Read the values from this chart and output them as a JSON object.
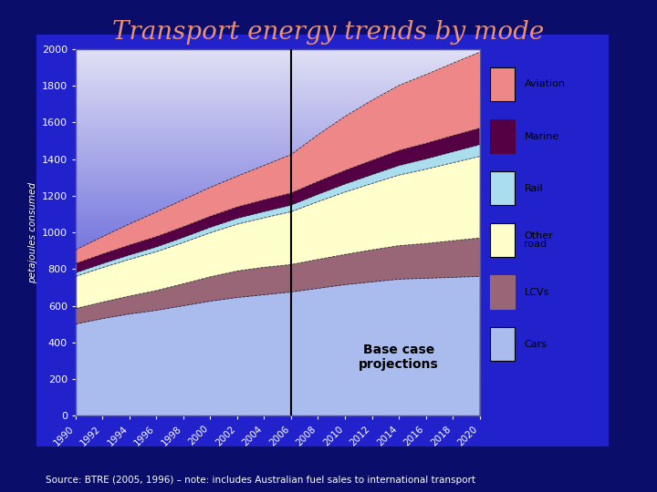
{
  "title": "Transport energy trends by mode",
  "title_color": "#E8907A",
  "bg_outer": "#0A0E6A",
  "bg_plot": "#2222CC",
  "source_text": "Source: BTRE (2005, 1996) – note: includes Australian fuel sales to international transport",
  "ylabel": "petajoules consumed",
  "years": [
    1990,
    1992,
    1994,
    1996,
    1998,
    2000,
    2002,
    2004,
    2006,
    2008,
    2010,
    2012,
    2014,
    2016,
    2018,
    2020
  ],
  "annotation": "Base case\nprojections",
  "vline_year": 2006,
  "series": {
    "Cars": [
      500,
      530,
      555,
      575,
      600,
      625,
      645,
      660,
      675,
      695,
      715,
      730,
      745,
      750,
      755,
      760
    ],
    "LCVs": [
      85,
      90,
      98,
      108,
      120,
      133,
      145,
      150,
      150,
      158,
      165,
      175,
      183,
      190,
      200,
      210
    ],
    "Other road": [
      175,
      188,
      200,
      212,
      225,
      240,
      255,
      270,
      288,
      315,
      340,
      362,
      385,
      405,
      425,
      445
    ],
    "Rail": [
      20,
      22,
      24,
      26,
      28,
      30,
      32,
      34,
      36,
      40,
      44,
      48,
      52,
      56,
      60,
      64
    ],
    "Marine": [
      50,
      52,
      54,
      56,
      58,
      60,
      62,
      64,
      66,
      70,
      74,
      78,
      82,
      85,
      88,
      90
    ],
    "Aviation": [
      75,
      95,
      115,
      135,
      148,
      158,
      168,
      188,
      210,
      255,
      295,
      328,
      355,
      375,
      395,
      415
    ]
  },
  "colors": {
    "Cars": "#AABBEE",
    "LCVs": "#996677",
    "Other road": "#FFFFCC",
    "Rail": "#AADDEE",
    "Marine": "#550044",
    "Aviation": "#EE8888"
  },
  "ylim": [
    0,
    2000
  ],
  "yticks": [
    0,
    200,
    400,
    600,
    800,
    1000,
    1200,
    1400,
    1600,
    1800,
    2000
  ],
  "legend_items": [
    {
      "label": "Aviation",
      "color": "#EE8888",
      "outlined": true
    },
    {
      "label": "Marine",
      "color": "#550044",
      "outlined": false
    },
    {
      "label": "Rail",
      "color": "#AADDEE",
      "outlined": true
    },
    {
      "label": "Other\nroad",
      "color": "#FFFFCC",
      "outlined": true
    },
    {
      "label": "LCVs",
      "color": "#996677",
      "outlined": false
    },
    {
      "label": "Cars",
      "color": "#AABBEE",
      "outlined": true
    }
  ]
}
